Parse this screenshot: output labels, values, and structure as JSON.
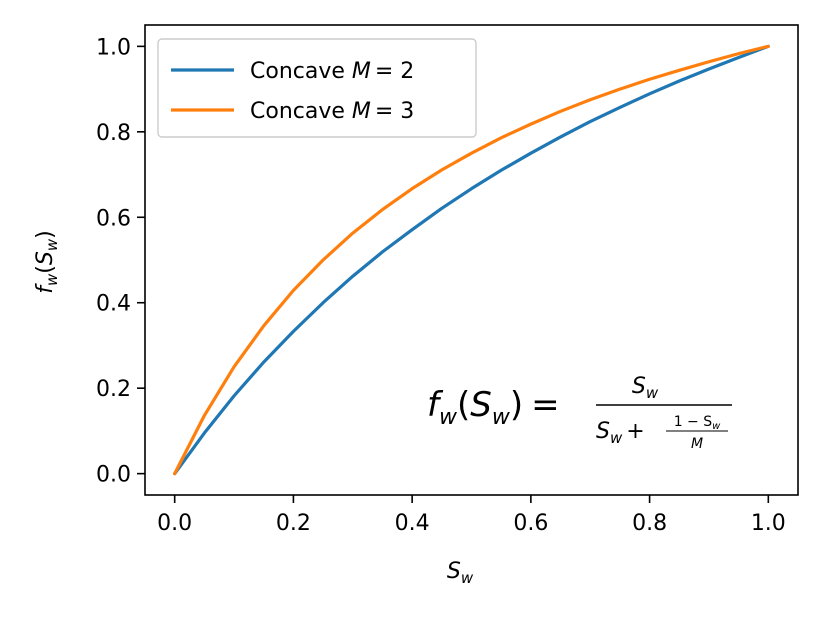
{
  "chart_data": {
    "type": "line",
    "xlabel": "S_w",
    "ylabel": "f_w(S_w)",
    "xlim": [
      -0.05,
      1.05
    ],
    "ylim": [
      -0.05,
      1.05
    ],
    "x_ticks": [
      "0.0",
      "0.2",
      "0.4",
      "0.6",
      "0.8",
      "1.0"
    ],
    "y_ticks": [
      "0.0",
      "0.2",
      "0.4",
      "0.6",
      "0.8",
      "1.0"
    ],
    "grid": false,
    "legend_position": "top-left",
    "series": [
      {
        "name": "Concave M = 2",
        "legend_prefix": "Concave ",
        "legend_var": "M",
        "legend_value": "= 2",
        "color": "#1f77b4",
        "x": [
          0,
          0.05,
          0.1,
          0.15,
          0.2,
          0.25,
          0.3,
          0.35,
          0.4,
          0.45,
          0.5,
          0.55,
          0.6,
          0.65,
          0.7,
          0.75,
          0.8,
          0.85,
          0.9,
          0.95,
          1.0
        ],
        "y": [
          0,
          0.095,
          0.182,
          0.261,
          0.333,
          0.4,
          0.462,
          0.519,
          0.571,
          0.621,
          0.667,
          0.71,
          0.75,
          0.788,
          0.824,
          0.857,
          0.889,
          0.919,
          0.947,
          0.974,
          1.0
        ]
      },
      {
        "name": "Concave M = 3",
        "legend_prefix": "Concave ",
        "legend_var": "M",
        "legend_value": "= 3",
        "color": "#ff7f0e",
        "x": [
          0,
          0.05,
          0.1,
          0.15,
          0.2,
          0.25,
          0.3,
          0.35,
          0.4,
          0.45,
          0.5,
          0.55,
          0.6,
          0.65,
          0.7,
          0.75,
          0.8,
          0.85,
          0.9,
          0.95,
          1.0
        ],
        "y": [
          0,
          0.136,
          0.25,
          0.346,
          0.429,
          0.5,
          0.563,
          0.618,
          0.667,
          0.711,
          0.75,
          0.786,
          0.818,
          0.848,
          0.875,
          0.9,
          0.923,
          0.944,
          0.964,
          0.983,
          1.0
        ]
      }
    ],
    "annotation": {
      "lhs_f": "f",
      "lhs_sub": "w",
      "lhs_open": "(",
      "lhs_S": "S",
      "lhs_S_sub": "w",
      "lhs_close": ")",
      "equals": "=",
      "num_S": "S",
      "num_sub": "w",
      "den_S": "S",
      "den_sub": "w",
      "den_plus": "+",
      "inner_num": "1 − S",
      "inner_num_sub": "w",
      "inner_den": "M"
    }
  }
}
